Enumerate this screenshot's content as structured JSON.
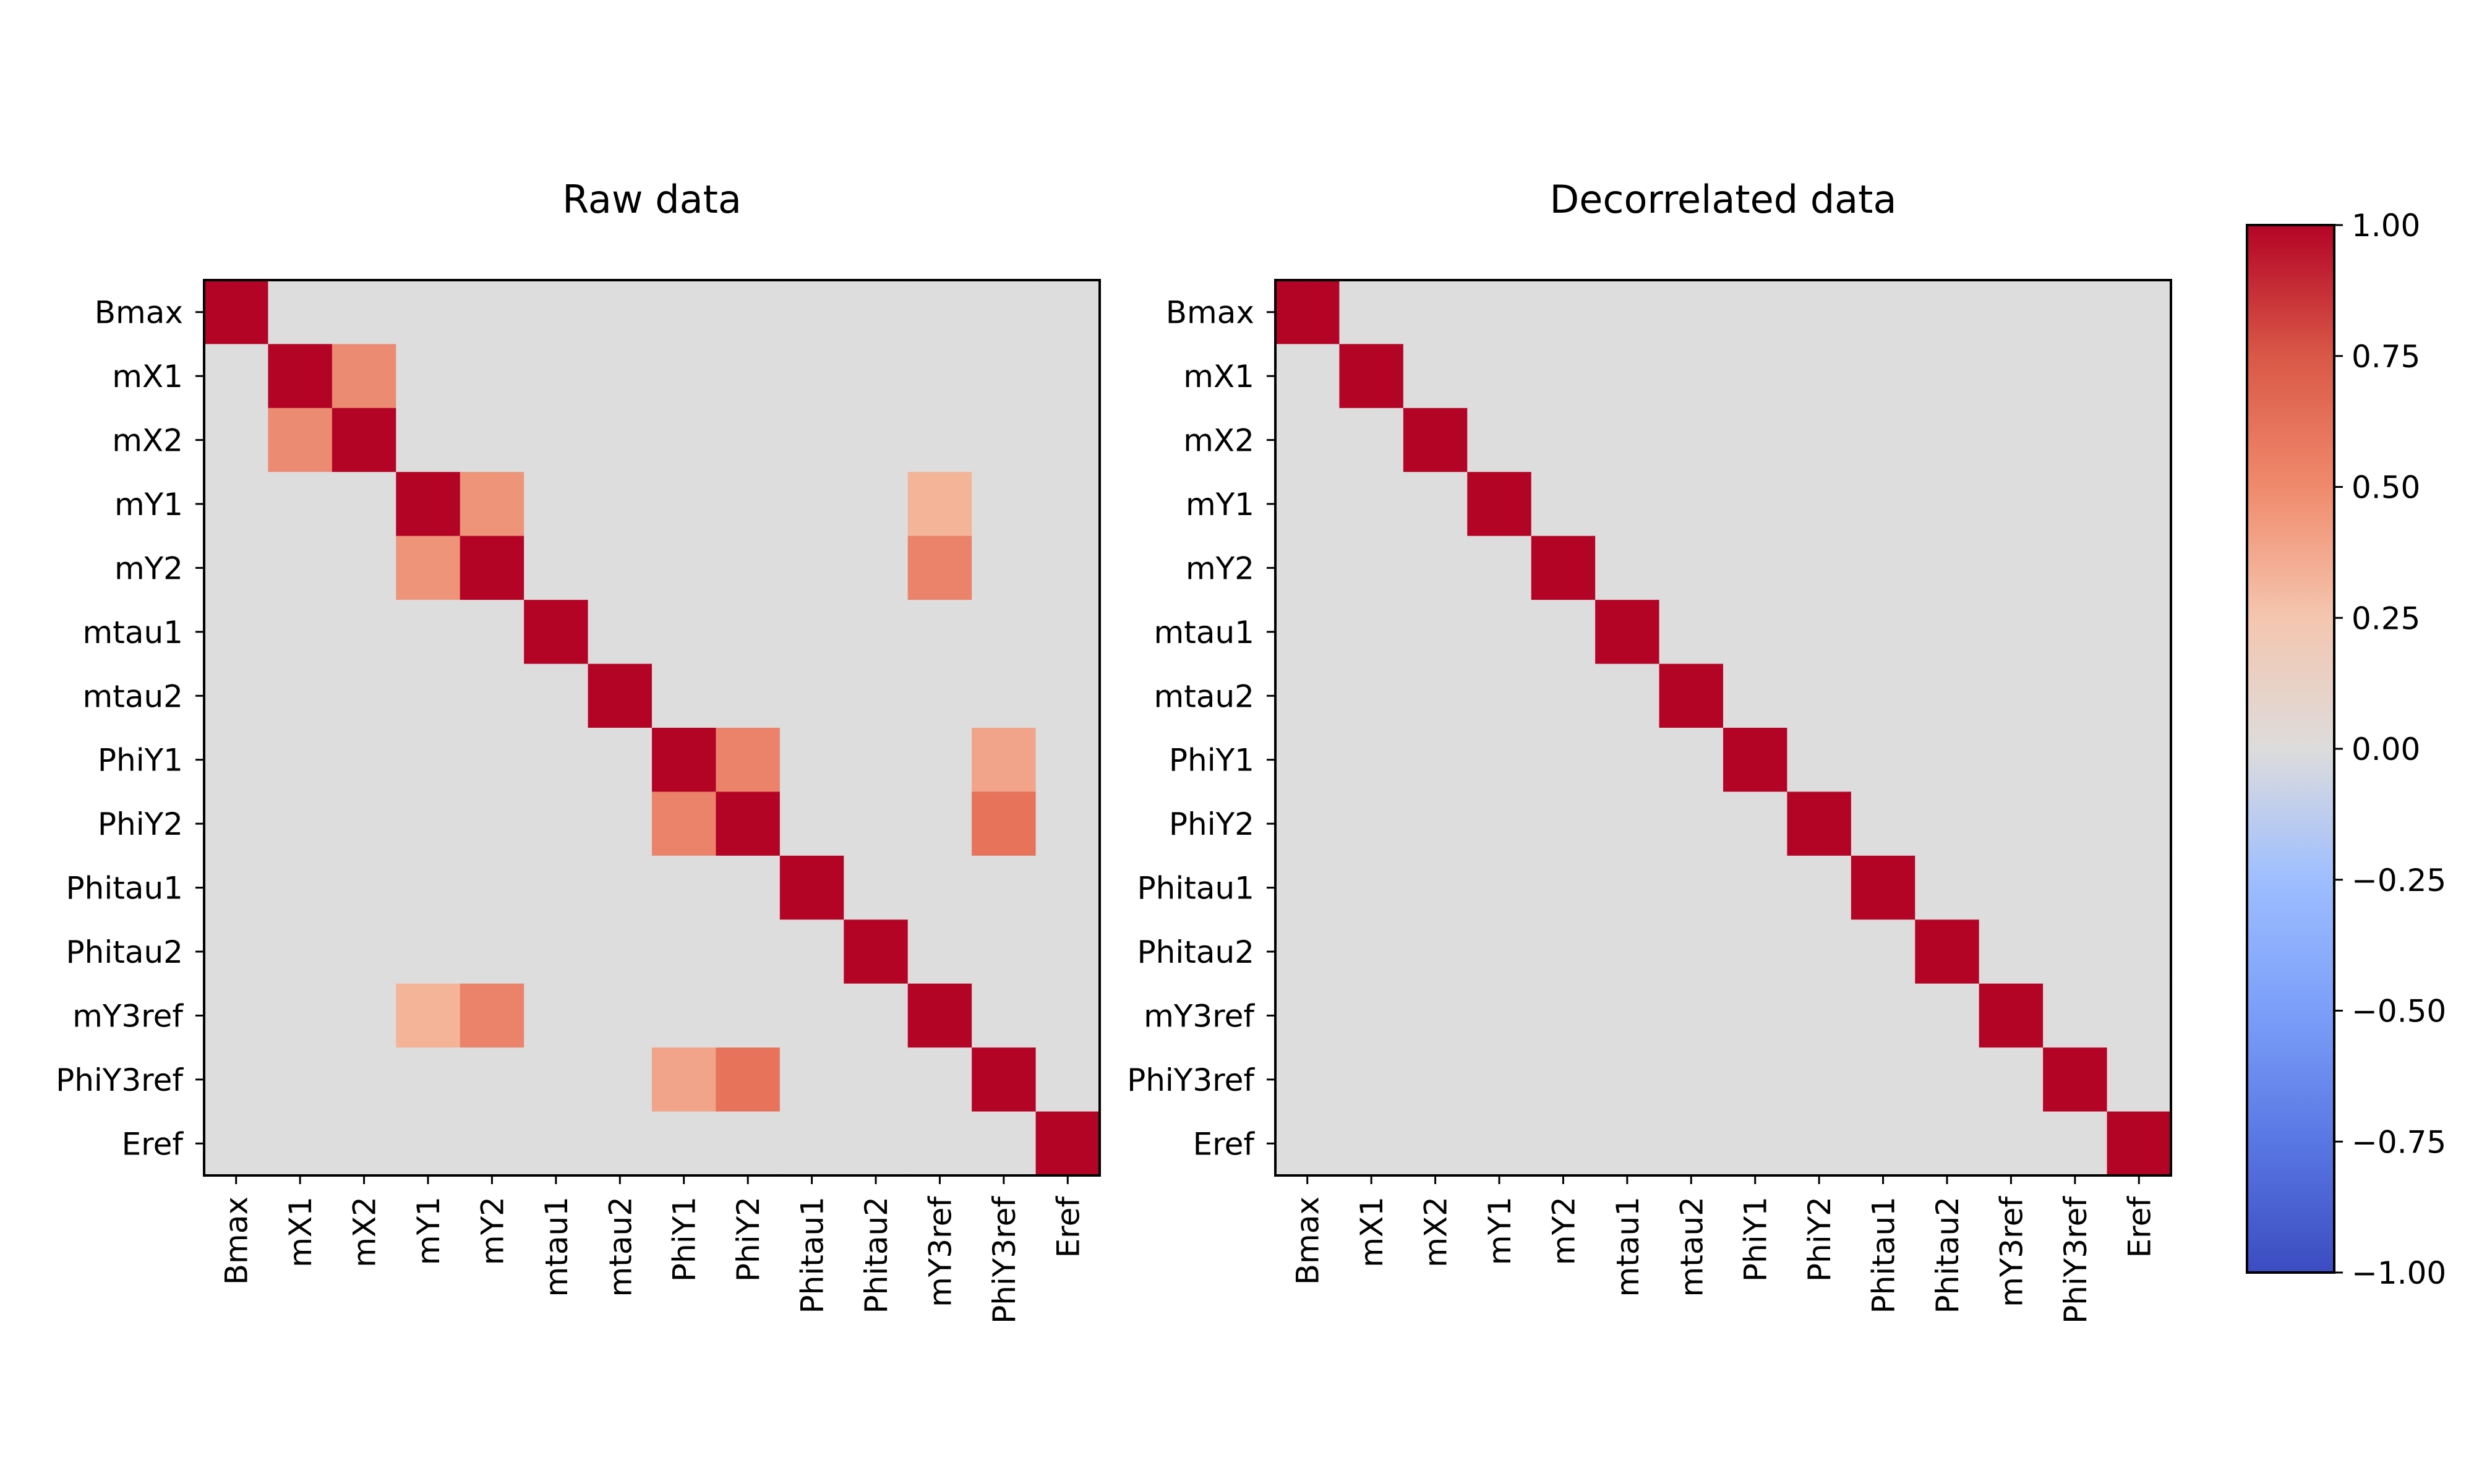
{
  "chart_data": [
    {
      "type": "heatmap",
      "title": "Raw data",
      "labels": [
        "Bmax",
        "mX1",
        "mX2",
        "mY1",
        "mY2",
        "mtau1",
        "mtau2",
        "PhiY1",
        "PhiY2",
        "Phitau1",
        "Phitau2",
        "mY3ref",
        "PhiY3ref",
        "Eref"
      ],
      "matrix": [
        [
          1.0,
          0,
          0,
          0,
          0,
          0,
          0,
          0,
          0,
          0,
          0,
          0,
          0,
          0
        ],
        [
          0,
          1.0,
          0.6,
          0,
          0,
          0,
          0,
          0,
          0,
          0,
          0,
          0,
          0,
          0
        ],
        [
          0,
          0.6,
          1.0,
          0,
          0,
          0,
          0,
          0,
          0,
          0,
          0,
          0,
          0,
          0
        ],
        [
          0,
          0,
          0,
          1.0,
          0.55,
          0,
          0,
          0,
          0,
          0,
          0,
          0.35,
          0,
          0
        ],
        [
          0,
          0,
          0,
          0.55,
          1.0,
          0,
          0,
          0,
          0,
          0,
          0,
          0.65,
          0,
          0
        ],
        [
          0,
          0,
          0,
          0,
          0,
          1.0,
          0,
          0,
          0,
          0,
          0,
          0,
          0,
          0
        ],
        [
          0,
          0,
          0,
          0,
          0,
          0,
          1.0,
          0,
          0,
          0,
          0,
          0,
          0,
          0
        ],
        [
          0,
          0,
          0,
          0,
          0,
          0,
          0,
          1.0,
          0.65,
          0,
          0,
          0,
          0.45,
          0
        ],
        [
          0,
          0,
          0,
          0,
          0,
          0,
          0,
          0.65,
          1.0,
          0,
          0,
          0,
          0.75,
          0
        ],
        [
          0,
          0,
          0,
          0,
          0,
          0,
          0,
          0,
          0,
          1.0,
          0,
          0,
          0,
          0
        ],
        [
          0,
          0,
          0,
          0,
          0,
          0,
          0,
          0,
          0,
          0,
          1.0,
          0,
          0,
          0
        ],
        [
          0,
          0,
          0,
          0.35,
          0.65,
          0,
          0,
          0,
          0,
          0,
          0,
          1.0,
          0,
          0
        ],
        [
          0,
          0,
          0,
          0,
          0,
          0,
          0,
          0.45,
          0.75,
          0,
          0,
          0,
          1.0,
          0
        ],
        [
          0,
          0,
          0,
          0,
          0,
          0,
          0,
          0,
          0,
          0,
          0,
          0,
          0,
          1.0
        ]
      ]
    },
    {
      "type": "heatmap",
      "title": "Decorrelated data",
      "labels": [
        "Bmax",
        "mX1",
        "mX2",
        "mY1",
        "mY2",
        "mtau1",
        "mtau2",
        "PhiY1",
        "PhiY2",
        "Phitau1",
        "Phitau2",
        "mY3ref",
        "PhiY3ref",
        "Eref"
      ],
      "matrix": [
        [
          1.0,
          0,
          0,
          0,
          0,
          0,
          0,
          0,
          0,
          0,
          0,
          0,
          0,
          0
        ],
        [
          0,
          1.0,
          0,
          0,
          0,
          0,
          0,
          0,
          0,
          0,
          0,
          0,
          0,
          0
        ],
        [
          0,
          0,
          1.0,
          0,
          0,
          0,
          0,
          0,
          0,
          0,
          0,
          0,
          0,
          0
        ],
        [
          0,
          0,
          0,
          1.0,
          0,
          0,
          0,
          0,
          0,
          0,
          0,
          0,
          0,
          0
        ],
        [
          0,
          0,
          0,
          0,
          1.0,
          0,
          0,
          0,
          0,
          0,
          0,
          0,
          0,
          0
        ],
        [
          0,
          0,
          0,
          0,
          0,
          1.0,
          0,
          0,
          0,
          0,
          0,
          0,
          0,
          0
        ],
        [
          0,
          0,
          0,
          0,
          0,
          0,
          1.0,
          0,
          0,
          0,
          0,
          0,
          0,
          0
        ],
        [
          0,
          0,
          0,
          0,
          0,
          0,
          0,
          1.0,
          0,
          0,
          0,
          0,
          0,
          0
        ],
        [
          0,
          0,
          0,
          0,
          0,
          0,
          0,
          0,
          1.0,
          0,
          0,
          0,
          0,
          0
        ],
        [
          0,
          0,
          0,
          0,
          0,
          0,
          0,
          0,
          0,
          1.0,
          0,
          0,
          0,
          0
        ],
        [
          0,
          0,
          0,
          0,
          0,
          0,
          0,
          0,
          0,
          0,
          1.0,
          0,
          0,
          0
        ],
        [
          0,
          0,
          0,
          0,
          0,
          0,
          0,
          0,
          0,
          0,
          0,
          1.0,
          0,
          0
        ],
        [
          0,
          0,
          0,
          0,
          0,
          0,
          0,
          0,
          0,
          0,
          0,
          0,
          1.0,
          0
        ],
        [
          0,
          0,
          0,
          0,
          0,
          0,
          0,
          0,
          0,
          0,
          0,
          0,
          0,
          1.0
        ]
      ]
    }
  ],
  "colorbar": {
    "colormap": "coolwarm",
    "range": [
      -1.0,
      1.0
    ],
    "ticks": [
      1.0,
      0.75,
      0.5,
      0.25,
      0.0,
      -0.25,
      -0.5,
      -0.75,
      -1.0
    ],
    "tick_labels": [
      "1.00",
      "0.75",
      "0.50",
      "0.25",
      "0.00",
      "−0.25",
      "−0.50",
      "−0.75",
      "−1.00"
    ],
    "colors": {
      "low": "#3b4cc0",
      "mid": "#dddddd",
      "high": "#b40426"
    }
  }
}
